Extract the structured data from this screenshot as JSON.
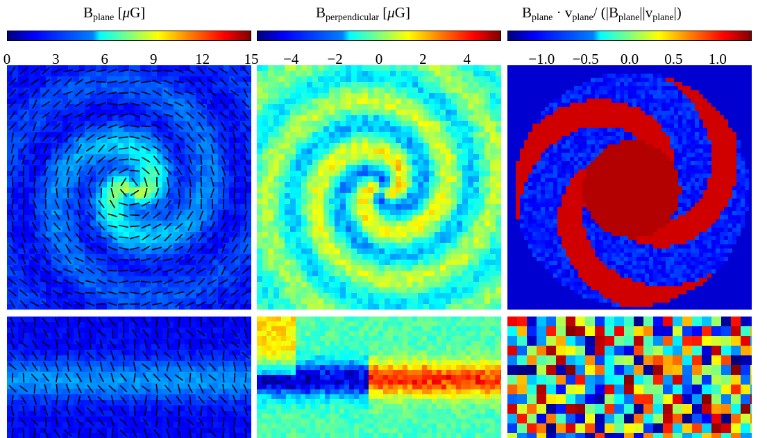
{
  "panels": [
    {
      "title_main": "B",
      "title_sub": "plane",
      "title_unit_open": "[",
      "title_unit_mu": "μ",
      "title_unit_rest": "G]",
      "ticks": [
        "0",
        "3",
        "6",
        "9",
        "12",
        "15"
      ],
      "range": [
        0,
        15
      ]
    },
    {
      "title_main": "B",
      "title_sub": "perpendicular",
      "title_unit_open": "[",
      "title_unit_mu": "μ",
      "title_unit_rest": "G]",
      "ticks": [
        "−4",
        "−2",
        "0",
        "2",
        "4"
      ],
      "range": [
        -5,
        5
      ]
    },
    {
      "title_main": "B",
      "title_sub": "plane",
      "title_mid": " · v",
      "title_sub2": "plane",
      "title_tail": "/ (|B",
      "title_sub3": "plane",
      "title_tail2": "||v",
      "title_sub4": "plane",
      "title_tail3": "|)",
      "ticks": [
        "−1.0",
        "−0.5",
        "0.0",
        "0.5",
        "1.0"
      ],
      "range": [
        -1,
        1
      ]
    }
  ],
  "colormap": "jet",
  "colors": {
    "deep_blue": "#00007f",
    "blue": "#0000ff",
    "cyan": "#00ffff",
    "yellow": "#ffff00",
    "red": "#ff0000",
    "dark_red": "#7f0000",
    "vector_color": "#000000"
  }
}
